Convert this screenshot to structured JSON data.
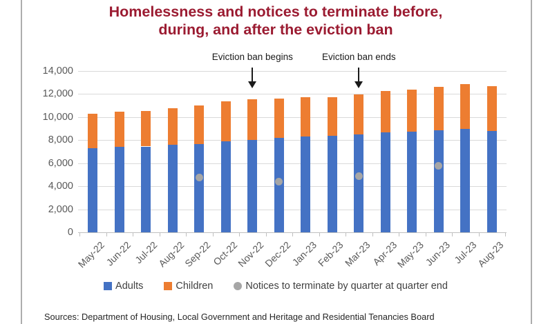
{
  "title": {
    "line1": "Homelessness and notices to terminate before,",
    "line2": "during, and after the eviction ban"
  },
  "chart_data": {
    "type": "bar",
    "subtype": "stacked-bars-with-scatter-points",
    "categories": [
      "May-22",
      "Jun-22",
      "Jul-22",
      "Aug-22",
      "Sep-22",
      "Oct-22",
      "Nov-22",
      "Dec-22",
      "Jan-23",
      "Feb-23",
      "Mar-23",
      "Apr-23",
      "May-23",
      "Jun-23",
      "Jul-23",
      "Aug-23"
    ],
    "series": [
      {
        "name": "Adults",
        "color": "#4472C4",
        "values": [
          7300,
          7400,
          7450,
          7600,
          7650,
          7900,
          8000,
          8200,
          8300,
          8400,
          8500,
          8650,
          8750,
          8850,
          9000,
          8800
        ]
      },
      {
        "name": "Children",
        "color": "#ED7D31",
        "values": [
          3000,
          3050,
          3100,
          3200,
          3350,
          3500,
          3550,
          3400,
          3450,
          3350,
          3450,
          3600,
          3650,
          3750,
          3850,
          3900
        ]
      }
    ],
    "points_series": {
      "name": "Notices to terminate by quarter at quarter end",
      "color": "#A6A6A6",
      "points": [
        {
          "category": "Sep-22",
          "value": 4750
        },
        {
          "category": "Dec-22",
          "value": 4400
        },
        {
          "category": "Mar-23",
          "value": 4850
        },
        {
          "category": "Jun-23",
          "value": 5750
        }
      ]
    },
    "annotations": [
      {
        "label": "Eviction ban begins",
        "category": "Nov-22"
      },
      {
        "label": "Eviction ban ends",
        "category": "Mar-23"
      }
    ],
    "ylim": [
      0,
      14000
    ],
    "ytick_interval": 2000,
    "xlabel": "",
    "ylabel": "",
    "grid": true,
    "legend_position": "bottom",
    "title_color": "#9B1B31",
    "axis_text_color": "#595959"
  },
  "footer": {
    "sources": "Sources: Department of Housing, Local Government and Heritage and Residential Tenancies Board"
  }
}
